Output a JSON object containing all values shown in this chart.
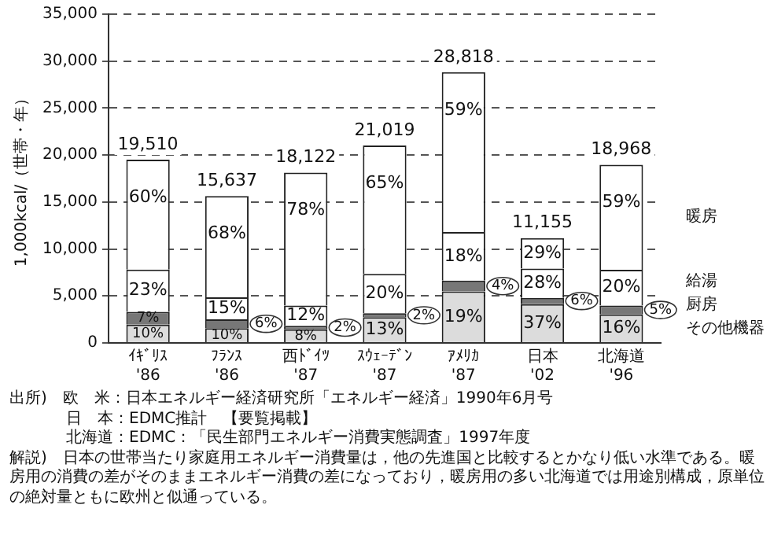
{
  "chart_data": {
    "type": "bar",
    "stacked": true,
    "ylabel": "1,000kcal/（世帯・年）",
    "categories": [
      "ｲｷﾞﾘｽ\n'86",
      "ﾌﾗﾝｽ\n'86",
      "西ﾄﾞｲﾂ\n'87",
      "ｽｳｪｰﾃﾞﾝ\n'87",
      "ｱﾒﾘｶ\n'87",
      "日本\n'02",
      "北海道\n'96"
    ],
    "series": [
      {
        "name": "その他機器",
        "color": "#dcdcdc",
        "values": [
          1951,
          1564,
          1450,
          2732,
          5475,
          4127,
          3035
        ]
      },
      {
        "name": "厨房",
        "color": "#777777",
        "values": [
          1366,
          938,
          362,
          420,
          1153,
          669,
          948
        ]
      },
      {
        "name": "給湯",
        "color": "#ffffff",
        "values": [
          4487,
          2346,
          2175,
          4204,
          5187,
          3123,
          3794
        ]
      },
      {
        "name": "暖房",
        "color": "#ffffff",
        "values": [
          11706,
          10789,
          14135,
          13663,
          17003,
          3236,
          11191
        ]
      }
    ],
    "totals": [
      "19,510",
      "15,637",
      "18,122",
      "21,019",
      "28,818",
      "11,155",
      "18,968"
    ],
    "ylim": [
      0,
      35000
    ],
    "yticks": [
      {
        "value": 0,
        "label": "0"
      },
      {
        "value": 5000,
        "label": "5,000"
      },
      {
        "value": 10000,
        "label": "10,000"
      },
      {
        "value": 15000,
        "label": "15,000"
      },
      {
        "value": 20000,
        "label": "20,000"
      },
      {
        "value": 25000,
        "label": "25,000"
      },
      {
        "value": 30000,
        "label": "30,000"
      },
      {
        "value": 35000,
        "label": "35,000"
      }
    ],
    "grid": "y",
    "line_style": "dashed",
    "annotations": [
      {
        "text": "10%",
        "x": "ｲｷﾞﾘｽ\n'86",
        "y": 1951
      },
      {
        "text": "7%",
        "x": "ｲｷﾞﾘｽ\n'86",
        "y": 3317
      },
      {
        "text": "23%",
        "x": "ｲｷﾞﾘｽ\n'86",
        "y": 7804
      },
      {
        "text": "60%",
        "x": "ｲｷﾞﾘｽ\n'86",
        "y": 19510
      },
      {
        "text": "10%",
        "x": "ﾌﾗﾝｽ\n'86",
        "y": 1564
      },
      {
        "text": "6%",
        "x": "ﾌﾗﾝｽ\n'86",
        "y": 2502
      },
      {
        "text": "15%",
        "x": "ﾌﾗﾝｽ\n'86",
        "y": 4848
      },
      {
        "text": "68%",
        "x": "ﾌﾗﾝｽ\n'86",
        "y": 15637
      },
      {
        "text": "8%",
        "x": "西ﾄﾞｲﾂ\n'87",
        "y": 1450
      },
      {
        "text": "2%",
        "x": "西ﾄﾞｲﾂ\n'87",
        "y": 1812
      },
      {
        "text": "12%",
        "x": "西ﾄﾞｲﾂ\n'87",
        "y": 3987
      },
      {
        "text": "78%",
        "x": "西ﾄﾞｲﾂ\n'87",
        "y": 18122
      },
      {
        "text": "13%",
        "x": "ｽｳｪｰﾃﾞﾝ\n'87",
        "y": 2732
      },
      {
        "text": "2%",
        "x": "ｽｳｪｰﾃﾞﾝ\n'87",
        "y": 3152
      },
      {
        "text": "20%",
        "x": "ｽｳｪｰﾃﾞﾝ\n'87",
        "y": 7356
      },
      {
        "text": "65%",
        "x": "ｽｳｪｰﾃﾞﾝ\n'87",
        "y": 21019
      },
      {
        "text": "19%",
        "x": "ｱﾒﾘｶ\n'87",
        "y": 5475
      },
      {
        "text": "4%",
        "x": "ｱﾒﾘｶ\n'87",
        "y": 6628
      },
      {
        "text": "18%",
        "x": "ｱﾒﾘｶ\n'87",
        "y": 11815
      },
      {
        "text": "59%",
        "x": "ｱﾒﾘｶ\n'87",
        "y": 28818
      },
      {
        "text": "37%",
        "x": "日本\n'02",
        "y": 4127
      },
      {
        "text": "6%",
        "x": "日本\n'02",
        "y": 4796
      },
      {
        "text": "28%",
        "x": "日本\n'02",
        "y": 7919
      },
      {
        "text": "29%",
        "x": "日本\n'02",
        "y": 11155
      },
      {
        "text": "16%",
        "x": "北海道\n'96",
        "y": 3035
      },
      {
        "text": "5%",
        "x": "北海道\n'96",
        "y": 3983
      },
      {
        "text": "20%",
        "x": "北海道\n'96",
        "y": 7777
      },
      {
        "text": "59%",
        "x": "北海道\n'96",
        "y": 18968
      },
      "出所)　欧　米：日本エネルギー経済研究所「エネルギー経済」1990年6月号",
      "日　本：EDMC推計　【要覧掲載】",
      "北海道：EDMC：「民生部門エネルギー消費実態調査」1997年度",
      "解説)　日本の世帯当たり家庭用エネルギー消費量は，他の先進国と比較するとかなり低い水準である。暖房用の消費の差がそのままエネルギー消費の差になっており，暖房用の多い北海道では用途別構成，原単位の絶対量ともに欧州と似通っている。"
    ]
  }
}
